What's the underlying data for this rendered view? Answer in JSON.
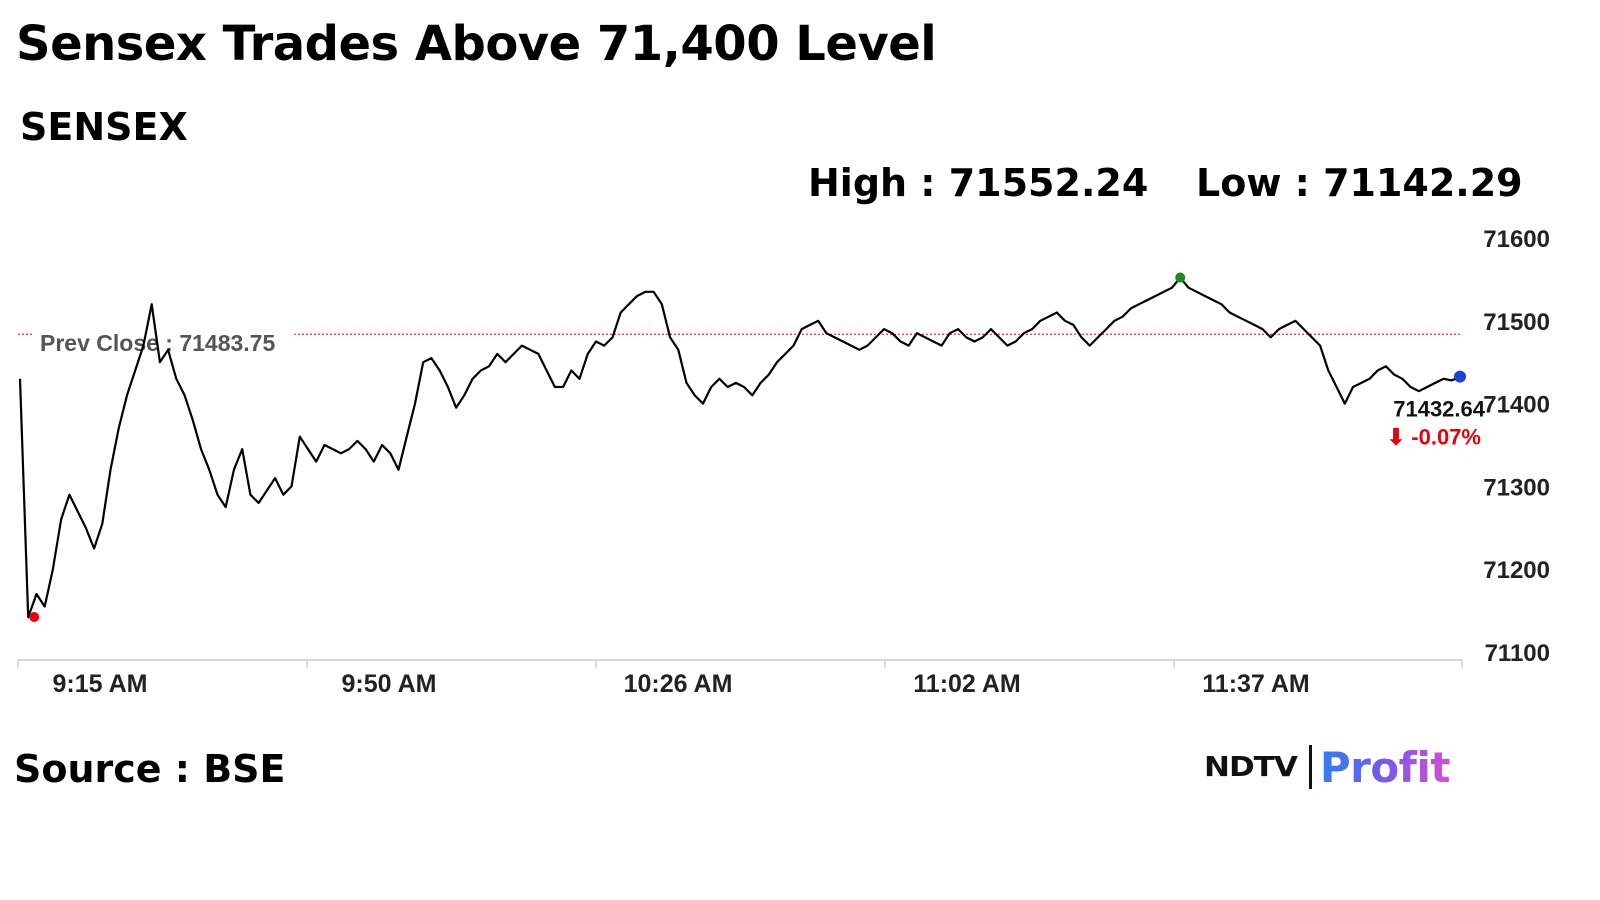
{
  "headline": "Sensex Trades Above 71,400 Level",
  "index_name": "SENSEX",
  "stats": {
    "high_label": "High : 71552.24",
    "low_label": "Low : 71142.29"
  },
  "source": "Source : BSE",
  "logo": {
    "primary": "NDTV",
    "secondary": "Profit"
  },
  "colors": {
    "line": "#000000",
    "low_marker": "#e8000b",
    "high_marker": "#1a8a1a",
    "last_marker": "#1f3fd6",
    "prev_close_line": "#d01010",
    "change_negative": "#e8000b",
    "axis_text": "#222222",
    "axis_line": "#cccccc"
  },
  "chart_data": {
    "type": "line",
    "title": "SENSEX",
    "x_ticks": [
      "9:15 AM",
      "9:50 AM",
      "10:26 AM",
      "11:02 AM",
      "11:37 AM"
    ],
    "y_ticks": [
      "71600",
      "71500",
      "71400",
      "71300",
      "71200",
      "71100"
    ],
    "ylim": [
      71100,
      71600
    ],
    "xlim_minutes_after_open": [
      0,
      175
    ],
    "grid": false,
    "prev_close": {
      "label": "Prev Close : 71483.75",
      "value": 71483.75
    },
    "high": {
      "value": 71552.24,
      "minute": 141
    },
    "low": {
      "value": 71142.29,
      "minute": 1
    },
    "last": {
      "value": 71432.64,
      "label": "71432.64",
      "change_label": "-0.07%",
      "minute": 175
    },
    "series": [
      {
        "x": [
          0,
          1,
          2,
          3,
          4,
          5,
          6,
          7,
          8,
          9,
          10,
          11,
          12,
          13,
          14,
          15,
          16,
          17,
          18,
          19,
          20,
          21,
          22,
          23,
          24,
          25,
          26,
          27,
          28,
          29,
          30,
          31,
          32,
          33,
          34,
          35,
          36,
          37,
          38,
          39,
          40,
          41,
          42,
          43,
          44,
          45,
          46,
          47,
          48,
          49,
          50,
          51,
          52,
          53,
          54,
          55,
          56,
          57,
          58,
          59,
          60,
          61,
          62,
          63,
          64,
          65,
          66,
          67,
          68,
          69,
          70,
          71,
          72,
          73,
          74,
          75,
          76,
          77,
          78,
          79,
          80,
          81,
          82,
          83,
          84,
          85,
          86,
          87,
          88,
          89,
          90,
          91,
          92,
          93,
          94,
          95,
          96,
          97,
          98,
          99,
          100,
          101,
          102,
          103,
          104,
          105,
          106,
          107,
          108,
          109,
          110,
          111,
          112,
          113,
          114,
          115,
          116,
          117,
          118,
          119,
          120,
          121,
          122,
          123,
          124,
          125,
          126,
          127,
          128,
          129,
          130,
          131,
          132,
          133,
          134,
          135,
          136,
          137,
          138,
          139,
          140,
          141,
          142,
          143,
          144,
          145,
          146,
          147,
          148,
          149,
          150,
          151,
          152,
          153,
          154,
          155,
          156,
          157,
          158,
          159,
          160,
          161,
          162,
          163,
          164,
          165,
          166,
          167,
          168,
          169,
          170,
          171,
          172,
          173,
          174,
          175
        ],
        "y": [
          71430,
          71142,
          71170,
          71155,
          71200,
          71260,
          71290,
          71270,
          71250,
          71225,
          71255,
          71320,
          71370,
          71410,
          71440,
          71470,
          71520,
          71450,
          71465,
          71430,
          71410,
          71380,
          71345,
          71320,
          71290,
          71275,
          71320,
          71345,
          71290,
          71280,
          71295,
          71310,
          71290,
          71300,
          71360,
          71345,
          71330,
          71350,
          71345,
          71340,
          71345,
          71355,
          71345,
          71330,
          71350,
          71340,
          71320,
          71360,
          71400,
          71450,
          71455,
          71440,
          71420,
          71395,
          71410,
          71430,
          71440,
          71445,
          71460,
          71450,
          71460,
          71470,
          71465,
          71460,
          71440,
          71420,
          71420,
          71440,
          71430,
          71460,
          71475,
          71470,
          71480,
          71510,
          71520,
          71530,
          71535,
          71535,
          71520,
          71480,
          71465,
          71425,
          71410,
          71400,
          71420,
          71430,
          71420,
          71425,
          71420,
          71410,
          71425,
          71435,
          71450,
          71460,
          71470,
          71490,
          71495,
          71500,
          71485,
          71480,
          71475,
          71470,
          71465,
          71470,
          71480,
          71490,
          71485,
          71475,
          71470,
          71485,
          71480,
          71475,
          71470,
          71485,
          71490,
          71480,
          71475,
          71480,
          71490,
          71480,
          71470,
          71475,
          71485,
          71490,
          71500,
          71505,
          71510,
          71500,
          71495,
          71480,
          71470,
          71480,
          71490,
          71500,
          71505,
          71515,
          71520,
          71525,
          71530,
          71535,
          71540,
          71552,
          71540,
          71535,
          71530,
          71525,
          71520,
          71510,
          71505,
          71500,
          71495,
          71490,
          71480,
          71490,
          71495,
          71500,
          71490,
          71480,
          71470,
          71440,
          71420,
          71400,
          71420,
          71425,
          71430,
          71440,
          71445,
          71435,
          71430,
          71420,
          71415,
          71420,
          71425,
          71430,
          71428,
          71432.64
        ]
      }
    ]
  }
}
